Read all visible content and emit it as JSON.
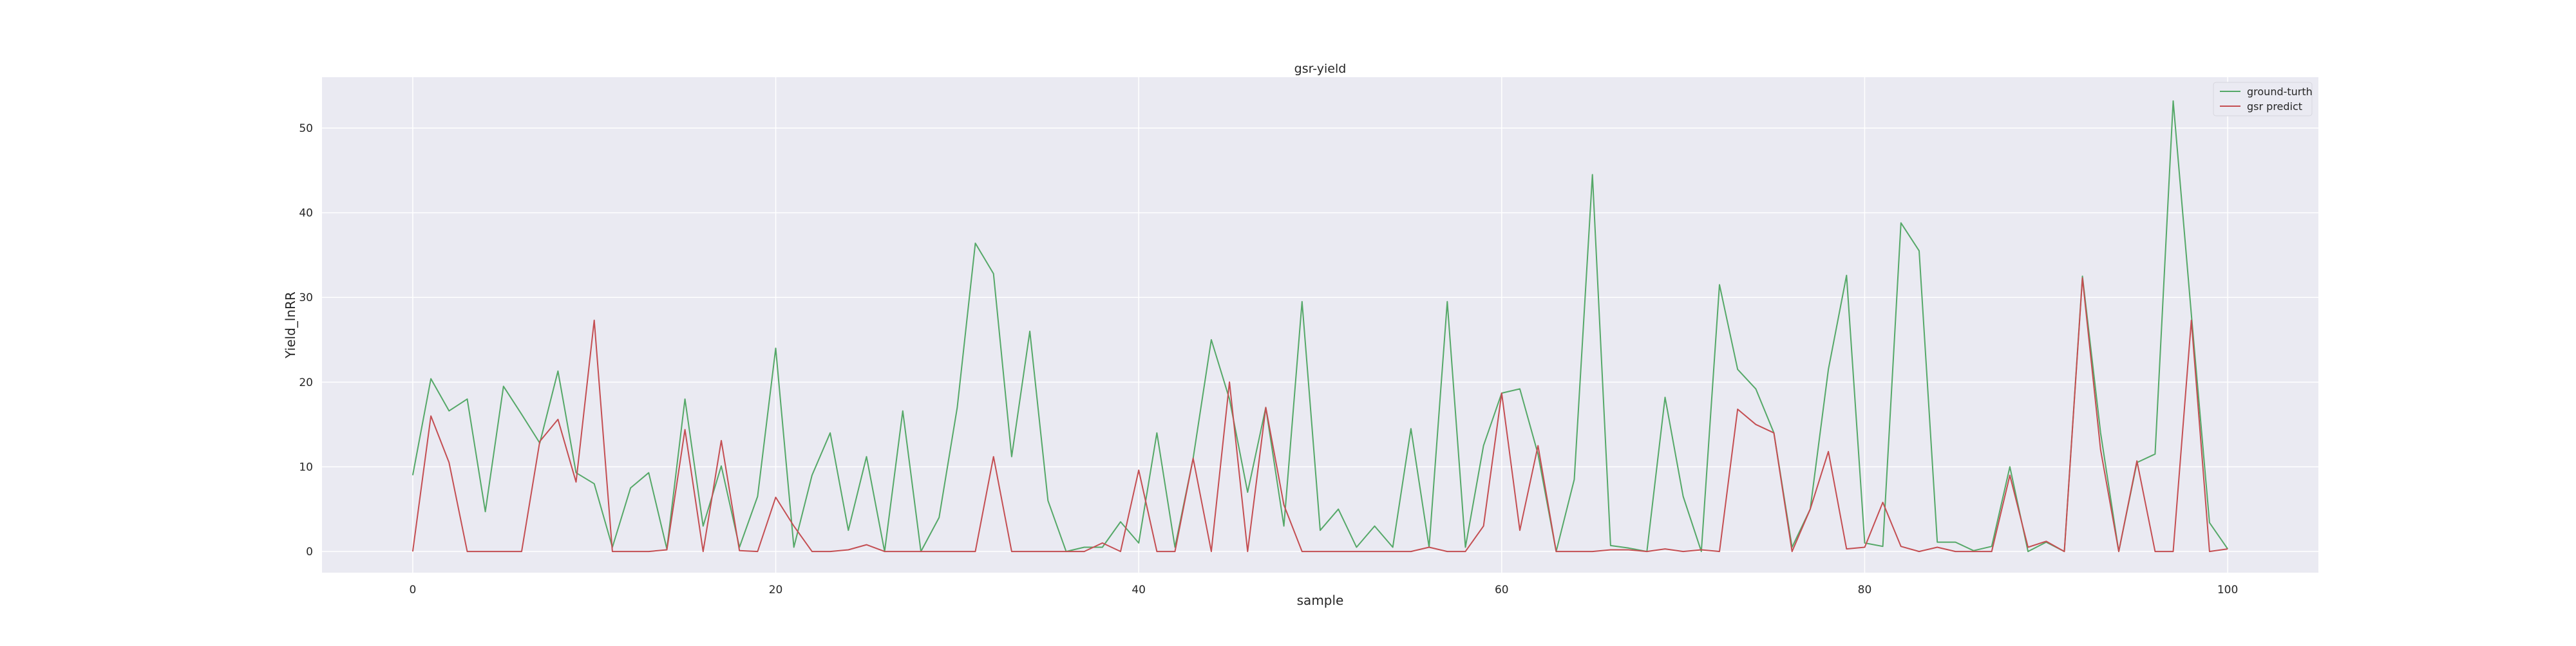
{
  "chart_data": {
    "type": "line",
    "title": "gsr-yield",
    "xlabel": "sample",
    "ylabel": "Yield_lnRR",
    "xlim": [
      -5,
      105
    ],
    "ylim": [
      -2.5,
      56
    ],
    "xticks": [
      0,
      20,
      40,
      60,
      80,
      100
    ],
    "yticks": [
      0,
      10,
      20,
      30,
      40,
      50
    ],
    "grid": true,
    "legend_position": "top-right",
    "x": [
      0,
      1,
      2,
      3,
      4,
      5,
      6,
      7,
      8,
      9,
      10,
      11,
      12,
      13,
      14,
      15,
      16,
      17,
      18,
      19,
      20,
      21,
      22,
      23,
      24,
      25,
      26,
      27,
      28,
      29,
      30,
      31,
      32,
      33,
      34,
      35,
      36,
      37,
      38,
      39,
      40,
      41,
      42,
      43,
      44,
      45,
      46,
      47,
      48,
      49,
      50,
      51,
      52,
      53,
      54,
      55,
      56,
      57,
      58,
      59,
      60,
      61,
      62,
      63,
      64,
      65,
      66,
      67,
      68,
      69,
      70,
      71,
      72,
      73,
      74,
      75,
      76,
      77,
      78,
      79,
      80,
      81,
      82,
      83,
      84,
      85,
      86,
      87,
      88,
      89,
      90,
      91,
      92,
      93,
      94,
      95,
      96,
      97,
      98,
      99,
      100
    ],
    "series": [
      {
        "name": "ground-turth",
        "color": "#55a868",
        "values": [
          9,
          20.4,
          16.6,
          18,
          4.7,
          19.5,
          16.2,
          12.8,
          21.3,
          9.3,
          8,
          0.5,
          7.5,
          9.3,
          0.3,
          18,
          3,
          10.1,
          0.5,
          6.5,
          24,
          0.5,
          9,
          14,
          2.5,
          11.2,
          0,
          16.6,
          0,
          4,
          17,
          36.4,
          32.8,
          11.2,
          26,
          6,
          0,
          0.5,
          0.5,
          3.5,
          1,
          14,
          0.5,
          11,
          25,
          18,
          7,
          17,
          3,
          29.5,
          2.5,
          5,
          0.5,
          3,
          0.5,
          14.5,
          0.5,
          29.5,
          0.5,
          12.5,
          18.7,
          19.2,
          11.5,
          0,
          8.5,
          44.5,
          0.7,
          0.4,
          0,
          18.2,
          6.5,
          0,
          31.5,
          21.5,
          19.2,
          14,
          0.5,
          5,
          21.5,
          32.6,
          1,
          0.6,
          38.8,
          35.5,
          1.1,
          1.1,
          0.1,
          0.6,
          10,
          0,
          1.1,
          0,
          32.5,
          14,
          0,
          10.5,
          11.5,
          53.2,
          28,
          3.4,
          0.3
        ]
      },
      {
        "name": "gsr predict",
        "color": "#c44e52",
        "values": [
          0,
          16,
          10.5,
          0,
          0,
          0,
          0,
          13,
          15.6,
          8.2,
          27.3,
          0,
          0,
          0,
          0.2,
          14.4,
          0,
          13.1,
          0.1,
          0,
          6.4,
          3,
          0,
          0,
          0.2,
          0.8,
          0,
          0,
          0,
          0,
          0,
          0,
          11.2,
          0,
          0,
          0,
          0,
          0,
          1,
          0,
          9.6,
          0,
          0,
          11,
          0,
          20,
          0,
          17,
          5.5,
          0,
          0,
          0,
          0,
          0,
          0,
          0,
          0.5,
          0,
          0,
          3,
          18.7,
          2.5,
          12.5,
          0,
          0,
          0,
          0.2,
          0.2,
          0,
          0.3,
          0,
          0.2,
          0,
          16.8,
          15,
          14,
          0,
          5,
          11.8,
          0.3,
          0.5,
          5.8,
          0.6,
          0,
          0.5,
          0,
          0,
          0,
          9,
          0.5,
          1.2,
          0,
          32.3,
          12,
          0,
          10.7,
          0,
          0,
          27.3,
          0,
          0.3
        ]
      }
    ]
  }
}
